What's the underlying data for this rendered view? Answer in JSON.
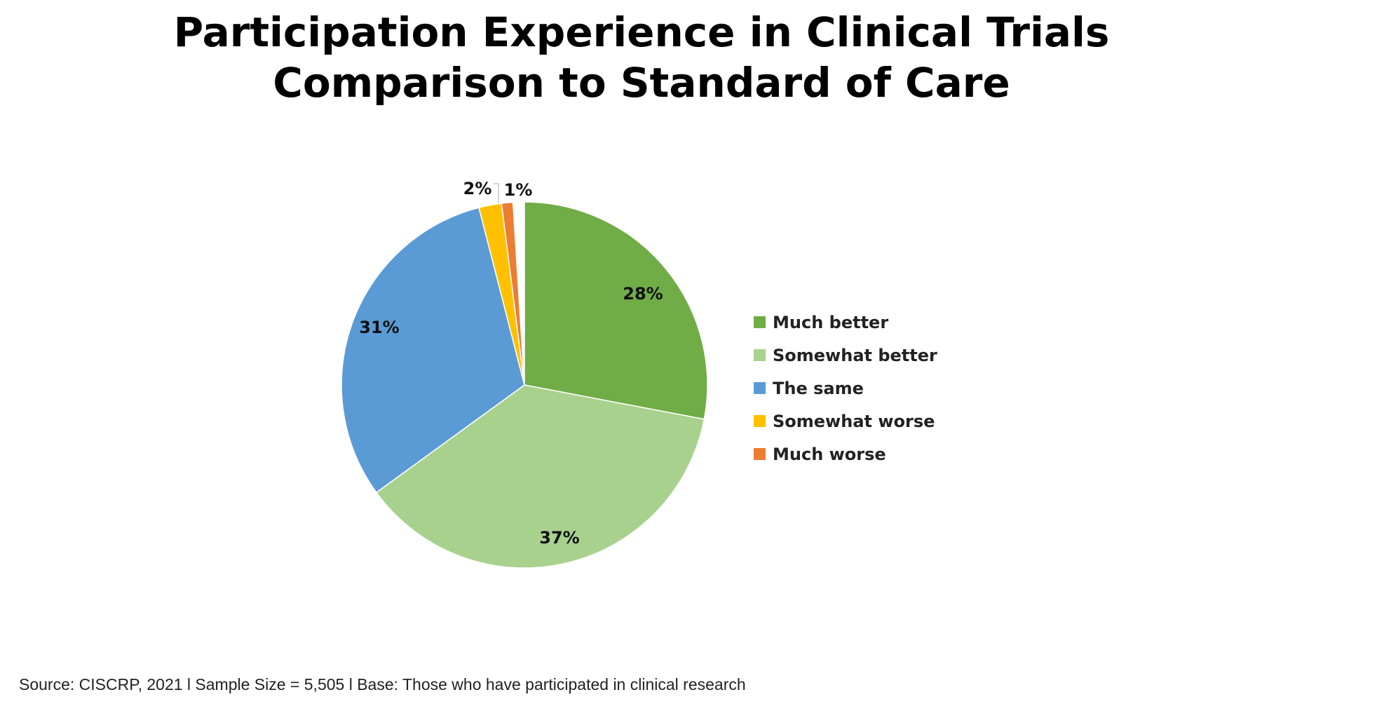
{
  "chart_data": {
    "type": "pie",
    "title": "Participation Experience in Clinical Trials",
    "subtitle": "Comparison to Standard of Care",
    "categories": [
      "Much better",
      "Somewhat better",
      "The same",
      "Somewhat worse",
      "Much worse"
    ],
    "values": [
      28,
      37,
      31,
      2,
      1
    ],
    "data_labels": [
      "28%",
      "37%",
      "31%",
      "2%",
      "1%"
    ],
    "colors": [
      "#70AD47",
      "#A9D18E",
      "#5B9BD5",
      "#FFC000",
      "#ED7D31"
    ],
    "legend_position": "right",
    "start_angle": "top, clockwise"
  },
  "footer": "Source: CISCRP, 2021 l Sample Size = 5,505 l Base: Those who have participated in clinical research"
}
